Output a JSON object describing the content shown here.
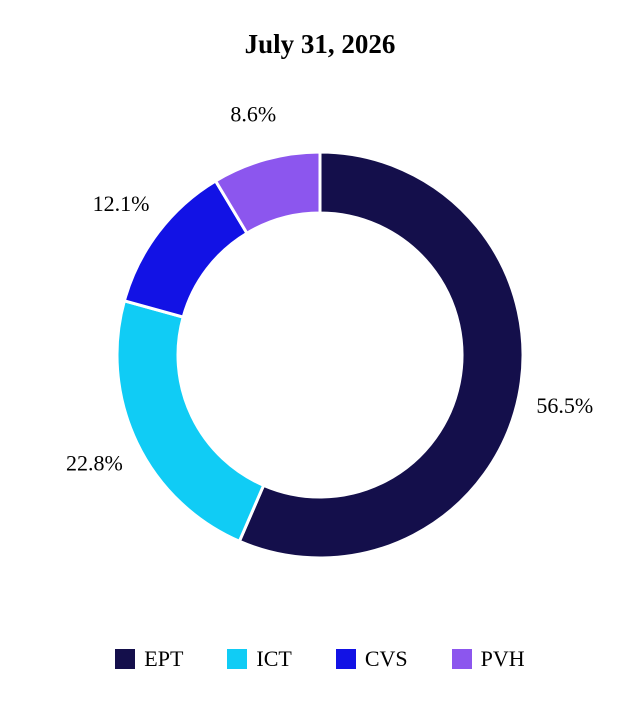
{
  "chart_data": {
    "type": "pie",
    "title": "July 31, 2026",
    "donut": true,
    "legend_position": "bottom",
    "slices": [
      {
        "label": "EPT",
        "value": 56.5,
        "value_label": "56.5%",
        "color": "#140f4b"
      },
      {
        "label": "ICT",
        "value": 22.8,
        "value_label": "22.8%",
        "color": "#10ccf5"
      },
      {
        "label": "CVS",
        "value": 12.1,
        "value_label": "12.1%",
        "color": "#1212e5"
      },
      {
        "label": "PVH",
        "value": 8.6,
        "value_label": "8.6%",
        "color": "#8c56ee"
      }
    ]
  }
}
